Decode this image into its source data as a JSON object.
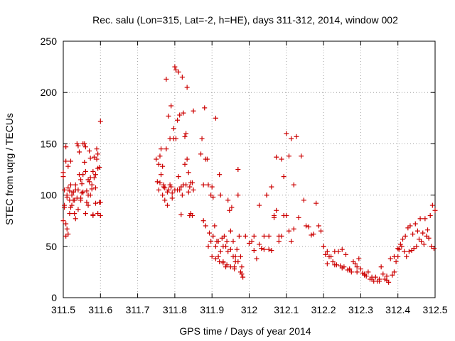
{
  "chart_data": {
    "type": "scatter",
    "title": "Rec. salu (Lon=315, Lat=-2, h=HE), days 311-312, 2014, window 002",
    "xlabel": "GPS time / Days of year 2014",
    "ylabel": "STEC from uqrg / TECUs",
    "xlim": [
      311.5,
      312.5
    ],
    "ylim": [
      0,
      250
    ],
    "xticks": [
      311.5,
      311.6,
      311.7,
      311.8,
      311.9,
      312.0,
      312.1,
      312.2,
      312.3,
      312.4,
      312.5
    ],
    "xtick_labels": [
      "311.5",
      "311.6",
      "311.7",
      "311.8",
      "311.9",
      "312",
      "312.1",
      "312.2",
      "312.3",
      "312.4",
      "312.5"
    ],
    "yticks": [
      0,
      50,
      100,
      150,
      200,
      250
    ],
    "ytick_labels": [
      "0",
      "50",
      "100",
      "150",
      "200",
      "250"
    ],
    "grid": true,
    "marker": "plus",
    "color": "#cc0000",
    "series": [
      {
        "x": [
          311.5,
          311.5,
          311.503,
          311.507,
          311.507,
          311.51,
          311.513,
          311.517,
          311.52,
          311.523,
          311.527,
          311.53,
          311.533,
          311.537,
          311.54,
          311.543,
          311.547,
          311.55,
          311.553,
          311.557,
          311.56,
          311.563,
          311.567,
          311.57,
          311.573,
          311.577,
          311.58,
          311.583,
          311.587,
          311.59,
          311.593,
          311.597,
          311.6,
          311.5,
          311.503,
          311.507,
          311.51,
          311.513,
          311.517,
          311.52,
          311.527,
          311.533,
          311.54,
          311.547,
          311.553,
          311.56,
          311.567,
          311.573,
          311.58,
          311.587,
          311.593,
          311.6,
          311.503,
          311.51,
          311.517,
          311.523,
          311.53,
          311.537,
          311.543,
          311.55,
          311.557,
          311.563,
          311.57,
          311.577,
          311.583,
          311.59,
          311.597,
          311.507,
          311.513,
          311.52,
          311.527,
          311.533,
          311.54,
          311.547,
          311.553,
          311.56,
          311.567,
          311.573,
          311.58,
          311.587,
          311.593,
          311.6,
          311.75,
          311.753,
          311.757,
          311.76,
          311.763,
          311.767,
          311.77,
          311.773,
          311.777,
          311.78,
          311.783,
          311.787,
          311.79,
          311.793,
          311.797,
          311.8,
          311.803,
          311.807,
          311.81,
          311.813,
          311.817,
          311.82,
          311.823,
          311.827,
          311.83,
          311.833,
          311.837,
          311.84,
          311.843,
          311.847,
          311.85,
          311.757,
          311.763,
          311.77,
          311.777,
          311.783,
          311.79,
          311.797,
          311.803,
          311.81,
          311.817,
          311.823,
          311.83,
          311.837,
          311.843,
          311.85,
          311.76,
          311.767,
          311.773,
          311.78,
          311.787,
          311.793,
          311.8,
          311.807,
          311.813,
          311.82,
          311.827,
          311.833,
          311.84,
          311.847,
          311.87,
          311.873,
          311.877,
          311.88,
          311.883,
          311.887,
          311.89,
          311.893,
          311.897,
          311.9,
          311.903,
          311.907,
          311.91,
          311.913,
          311.917,
          311.92,
          311.923,
          311.927,
          311.93,
          311.933,
          311.937,
          311.94,
          311.943,
          311.947,
          311.95,
          311.953,
          311.957,
          311.96,
          311.963,
          311.967,
          311.97,
          311.973,
          311.977,
          311.98,
          311.877,
          311.883,
          311.89,
          311.897,
          311.903,
          311.91,
          311.917,
          311.923,
          311.93,
          311.937,
          311.943,
          311.95,
          311.957,
          311.963,
          311.97,
          311.977,
          311.983,
          311.9,
          311.91,
          311.92,
          311.93,
          311.94,
          311.95,
          311.96,
          311.97,
          311.98,
          311.99,
          312.0,
          312.007,
          312.013,
          312.02,
          312.027,
          312.033,
          312.04,
          312.047,
          312.053,
          312.06,
          312.067,
          312.073,
          312.08,
          312.087,
          312.093,
          312.1,
          312.107,
          312.113,
          312.12,
          312.127,
          312.133,
          312.14,
          312.147,
          312.153,
          312.16,
          312.167,
          312.173,
          312.18,
          312.187,
          312.193,
          312.2,
          312.013,
          312.027,
          312.04,
          312.053,
          312.067,
          312.08,
          312.093,
          312.107,
          312.12,
          312.047,
          312.06,
          312.073,
          312.087,
          312.1,
          312.113,
          312.2,
          312.21,
          312.22,
          312.23,
          312.24,
          312.25,
          312.26,
          312.27,
          312.28,
          312.29,
          312.3,
          312.31,
          312.32,
          312.33,
          312.34,
          312.35,
          312.36,
          312.37,
          312.38,
          312.39,
          312.4,
          312.205,
          312.215,
          312.225,
          312.235,
          312.245,
          312.255,
          312.265,
          312.275,
          312.285,
          312.295,
          312.305,
          312.315,
          312.325,
          312.335,
          312.345,
          312.355,
          312.365,
          312.375,
          312.385,
          312.395,
          312.21,
          312.23,
          312.25,
          312.27,
          312.29,
          312.31,
          312.33,
          312.35,
          312.37,
          312.39,
          312.4,
          312.407,
          312.413,
          312.42,
          312.427,
          312.433,
          312.44,
          312.447,
          312.453,
          312.46,
          312.467,
          312.473,
          312.48,
          312.487,
          312.493,
          312.5,
          312.403,
          312.41,
          312.417,
          312.423,
          312.43,
          312.437,
          312.443,
          312.45,
          312.457,
          312.463,
          312.47,
          312.477,
          312.483,
          312.49,
          312.497
        ],
        "y": [
          122,
          75,
          90,
          147,
          133,
          100,
          128,
          104,
          133,
          90,
          103,
          82,
          110,
          150,
          148,
          142,
          97,
          111,
          120,
          132,
          147,
          104,
          115,
          113,
          136,
          110,
          81,
          137,
          107,
          145,
          126,
          93,
          172,
          118,
          88,
          72,
          98,
          62,
          82,
          110,
          95,
          77,
          86,
          95,
          103,
          82,
          90,
          100,
          80,
          92,
          82,
          80,
          105,
          67,
          95,
          100,
          95,
          97,
          120,
          102,
          150,
          93,
          143,
          106,
          117,
          135,
          127,
          60,
          107,
          88,
          103,
          105,
          105,
          115,
          150,
          123,
          100,
          117,
          123,
          120,
          140,
          93,
          135,
          113,
          105,
          138,
          120,
          128,
          110,
          107,
          145,
          103,
          105,
          155,
          108,
          102,
          165,
          225,
          222,
          105,
          220,
          178,
          108,
          215,
          180,
          130,
          160,
          205,
          122,
          108,
          112,
          112,
          182,
          130,
          145,
          108,
          213,
          177,
          187,
          155,
          155,
          118,
          81,
          110,
          110,
          103,
          82,
          105,
          112,
          100,
          95,
          90,
          110,
          97,
          105,
          173,
          105,
          100,
          157,
          135,
          80,
          80,
          140,
          155,
          110,
          185,
          135,
          135,
          110,
          63,
          100,
          108,
          98,
          70,
          175,
          55,
          40,
          120,
          100,
          58,
          34,
          60,
          50,
          55,
          95,
          85,
          47,
          88,
          55,
          30,
          40,
          47,
          100,
          60,
          40,
          30,
          75,
          70,
          50,
          55,
          60,
          50,
          55,
          45,
          50,
          30,
          45,
          65,
          40,
          35,
          125,
          25,
          20,
          40,
          38,
          35,
          35,
          32,
          30,
          28,
          35,
          23,
          60,
          53,
          55,
          46,
          38,
          52,
          48,
          60,
          100,
          47,
          46,
          80,
          85,
          60,
          60,
          118,
          80,
          138,
          55,
          110,
          157,
          78,
          138,
          95,
          70,
          69,
          61,
          62,
          92,
          70,
          65,
          50,
          60,
          90,
          47,
          60,
          78,
          55,
          80,
          65,
          67,
          100,
          108,
          137,
          135,
          160,
          155,
          50,
          45,
          40,
          45,
          45,
          47,
          42,
          28,
          35,
          30,
          28,
          22,
          25,
          18,
          20,
          16,
          23,
          21,
          38,
          40,
          48,
          42,
          40,
          35,
          32,
          31,
          30,
          27,
          25,
          33,
          38,
          24,
          21,
          18,
          16,
          16,
          30,
          18,
          15,
          22,
          35,
          33,
          32,
          29,
          27,
          25,
          23,
          20,
          18,
          17,
          25,
          40,
          52,
          57,
          60,
          68,
          70,
          62,
          72,
          65,
          77,
          63,
          77,
          66,
          80,
          90,
          85,
          47,
          50,
          45,
          40,
          45,
          46,
          48,
          50,
          57,
          55,
          52,
          60,
          58,
          50,
          48
        ]
      }
    ]
  }
}
